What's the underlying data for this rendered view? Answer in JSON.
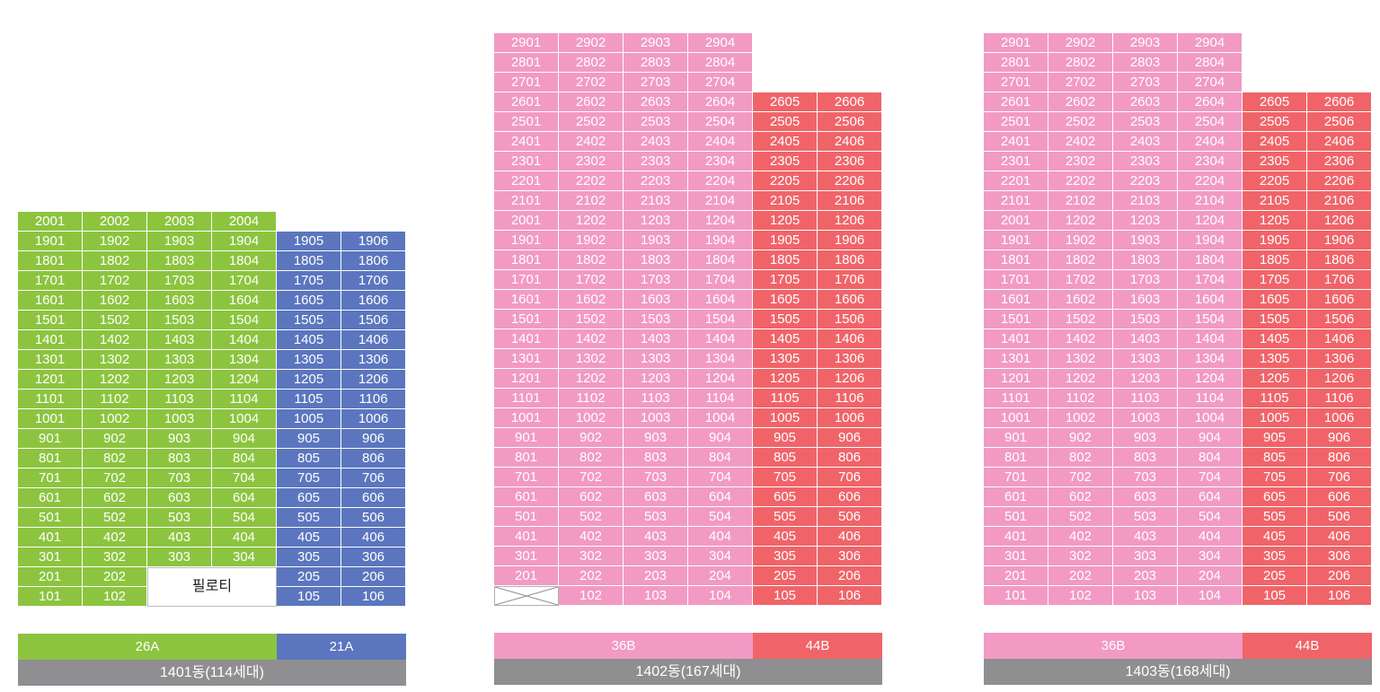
{
  "colors": {
    "green": "#8cc43f",
    "blue": "#5b76bf",
    "pink": "#f29ac4",
    "red": "#f06469",
    "gray": "#8f8f92"
  },
  "buildings": [
    {
      "id": "1401",
      "name": "1401동(114세대)",
      "types": [
        {
          "name": "26A",
          "color": "#8cc43f",
          "columns": 4
        },
        {
          "name": "21A",
          "color": "#5b76bf",
          "columns": 2
        }
      ],
      "column_colors": [
        "#8cc43f",
        "#8cc43f",
        "#8cc43f",
        "#8cc43f",
        "#5b76bf",
        "#5b76bf"
      ],
      "rows": [
        [
          "2001",
          "2002",
          "2003",
          "2004",
          null,
          null
        ],
        [
          "1901",
          "1902",
          "1903",
          "1904",
          "1905",
          "1906"
        ],
        [
          "1801",
          "1802",
          "1803",
          "1804",
          "1805",
          "1806"
        ],
        [
          "1701",
          "1702",
          "1703",
          "1704",
          "1705",
          "1706"
        ],
        [
          "1601",
          "1602",
          "1603",
          "1604",
          "1605",
          "1606"
        ],
        [
          "1501",
          "1502",
          "1503",
          "1504",
          "1505",
          "1506"
        ],
        [
          "1401",
          "1402",
          "1403",
          "1404",
          "1405",
          "1406"
        ],
        [
          "1301",
          "1302",
          "1303",
          "1304",
          "1305",
          "1306"
        ],
        [
          "1201",
          "1202",
          "1203",
          "1204",
          "1205",
          "1206"
        ],
        [
          "1101",
          "1102",
          "1103",
          "1104",
          "1105",
          "1106"
        ],
        [
          "1001",
          "1002",
          "1003",
          "1004",
          "1005",
          "1006"
        ],
        [
          "901",
          "902",
          "903",
          "904",
          "905",
          "906"
        ],
        [
          "801",
          "802",
          "803",
          "804",
          "805",
          "806"
        ],
        [
          "701",
          "702",
          "703",
          "704",
          "705",
          "706"
        ],
        [
          "601",
          "602",
          "603",
          "604",
          "605",
          "606"
        ],
        [
          "501",
          "502",
          "503",
          "504",
          "505",
          "506"
        ],
        [
          "401",
          "402",
          "403",
          "404",
          "405",
          "406"
        ],
        [
          "301",
          "302",
          "303",
          "304",
          "305",
          "306"
        ],
        [
          "201",
          "202",
          "PILOTI",
          "PILOTI",
          "205",
          "206"
        ],
        [
          "101",
          "102",
          "PILOTI",
          "PILOTI",
          "105",
          "106"
        ]
      ],
      "piloti_label": "필로티"
    },
    {
      "id": "1402",
      "name": "1402동(167세대)",
      "types": [
        {
          "name": "36B",
          "color": "#f29ac4",
          "columns": 4
        },
        {
          "name": "44B",
          "color": "#f06469",
          "columns": 2
        }
      ],
      "column_colors": [
        "#f29ac4",
        "#f29ac4",
        "#f29ac4",
        "#f29ac4",
        "#f06469",
        "#f06469"
      ],
      "rows": [
        [
          "2901",
          "2902",
          "2903",
          "2904",
          null,
          null
        ],
        [
          "2801",
          "2802",
          "2803",
          "2804",
          null,
          null
        ],
        [
          "2701",
          "2702",
          "2703",
          "2704",
          null,
          null
        ],
        [
          "2601",
          "2602",
          "2603",
          "2604",
          "2605",
          "2606"
        ],
        [
          "2501",
          "2502",
          "2503",
          "2504",
          "2505",
          "2506"
        ],
        [
          "2401",
          "2402",
          "2403",
          "2404",
          "2405",
          "2406"
        ],
        [
          "2301",
          "2302",
          "2303",
          "2304",
          "2305",
          "2306"
        ],
        [
          "2201",
          "2202",
          "2203",
          "2204",
          "2205",
          "2206"
        ],
        [
          "2101",
          "2102",
          "2103",
          "2104",
          "2105",
          "2106"
        ],
        [
          "2001",
          "1202",
          "1203",
          "1204",
          "1205",
          "1206"
        ],
        [
          "1901",
          "1902",
          "1903",
          "1904",
          "1905",
          "1906"
        ],
        [
          "1801",
          "1802",
          "1803",
          "1804",
          "1805",
          "1806"
        ],
        [
          "1701",
          "1702",
          "1703",
          "1704",
          "1705",
          "1706"
        ],
        [
          "1601",
          "1602",
          "1603",
          "1604",
          "1605",
          "1606"
        ],
        [
          "1501",
          "1502",
          "1503",
          "1504",
          "1505",
          "1506"
        ],
        [
          "1401",
          "1402",
          "1403",
          "1404",
          "1405",
          "1406"
        ],
        [
          "1301",
          "1302",
          "1303",
          "1304",
          "1305",
          "1306"
        ],
        [
          "1201",
          "1202",
          "1203",
          "1204",
          "1205",
          "1206"
        ],
        [
          "1101",
          "1102",
          "1103",
          "1104",
          "1105",
          "1106"
        ],
        [
          "1001",
          "1002",
          "1003",
          "1004",
          "1005",
          "1006"
        ],
        [
          "901",
          "902",
          "903",
          "904",
          "905",
          "906"
        ],
        [
          "801",
          "802",
          "803",
          "804",
          "805",
          "806"
        ],
        [
          "701",
          "702",
          "703",
          "704",
          "705",
          "706"
        ],
        [
          "601",
          "602",
          "603",
          "604",
          "605",
          "606"
        ],
        [
          "501",
          "502",
          "503",
          "504",
          "505",
          "506"
        ],
        [
          "401",
          "402",
          "403",
          "404",
          "405",
          "406"
        ],
        [
          "301",
          "302",
          "303",
          "304",
          "305",
          "306"
        ],
        [
          "201",
          "202",
          "203",
          "204",
          "205",
          "206"
        ],
        [
          "EMPTY",
          "102",
          "103",
          "104",
          "105",
          "106"
        ]
      ]
    },
    {
      "id": "1403",
      "name": "1403동(168세대)",
      "types": [
        {
          "name": "36B",
          "color": "#f29ac4",
          "columns": 4
        },
        {
          "name": "44B",
          "color": "#f06469",
          "columns": 2
        }
      ],
      "column_colors": [
        "#f29ac4",
        "#f29ac4",
        "#f29ac4",
        "#f29ac4",
        "#f06469",
        "#f06469"
      ],
      "rows": [
        [
          "2901",
          "2902",
          "2903",
          "2904",
          null,
          null
        ],
        [
          "2801",
          "2802",
          "2803",
          "2804",
          null,
          null
        ],
        [
          "2701",
          "2702",
          "2703",
          "2704",
          null,
          null
        ],
        [
          "2601",
          "2602",
          "2603",
          "2604",
          "2605",
          "2606"
        ],
        [
          "2501",
          "2502",
          "2503",
          "2504",
          "2505",
          "2506"
        ],
        [
          "2401",
          "2402",
          "2403",
          "2404",
          "2405",
          "2406"
        ],
        [
          "2301",
          "2302",
          "2303",
          "2304",
          "2305",
          "2306"
        ],
        [
          "2201",
          "2202",
          "2203",
          "2204",
          "2205",
          "2206"
        ],
        [
          "2101",
          "2102",
          "2103",
          "2104",
          "2105",
          "2106"
        ],
        [
          "2001",
          "1202",
          "1203",
          "1204",
          "1205",
          "1206"
        ],
        [
          "1901",
          "1902",
          "1903",
          "1904",
          "1905",
          "1906"
        ],
        [
          "1801",
          "1802",
          "1803",
          "1804",
          "1805",
          "1806"
        ],
        [
          "1701",
          "1702",
          "1703",
          "1704",
          "1705",
          "1706"
        ],
        [
          "1601",
          "1602",
          "1603",
          "1604",
          "1605",
          "1606"
        ],
        [
          "1501",
          "1502",
          "1503",
          "1504",
          "1505",
          "1506"
        ],
        [
          "1401",
          "1402",
          "1403",
          "1404",
          "1405",
          "1406"
        ],
        [
          "1301",
          "1302",
          "1303",
          "1304",
          "1305",
          "1306"
        ],
        [
          "1201",
          "1202",
          "1203",
          "1204",
          "1205",
          "1206"
        ],
        [
          "1101",
          "1102",
          "1103",
          "1104",
          "1105",
          "1106"
        ],
        [
          "1001",
          "1002",
          "1003",
          "1004",
          "1005",
          "1006"
        ],
        [
          "901",
          "902",
          "903",
          "904",
          "905",
          "906"
        ],
        [
          "801",
          "802",
          "803",
          "804",
          "805",
          "806"
        ],
        [
          "701",
          "702",
          "703",
          "704",
          "705",
          "706"
        ],
        [
          "601",
          "602",
          "603",
          "604",
          "605",
          "606"
        ],
        [
          "501",
          "502",
          "503",
          "504",
          "505",
          "506"
        ],
        [
          "401",
          "402",
          "403",
          "404",
          "405",
          "406"
        ],
        [
          "301",
          "302",
          "303",
          "304",
          "305",
          "306"
        ],
        [
          "201",
          "202",
          "203",
          "204",
          "205",
          "206"
        ],
        [
          "101",
          "102",
          "103",
          "104",
          "105",
          "106"
        ]
      ]
    }
  ]
}
